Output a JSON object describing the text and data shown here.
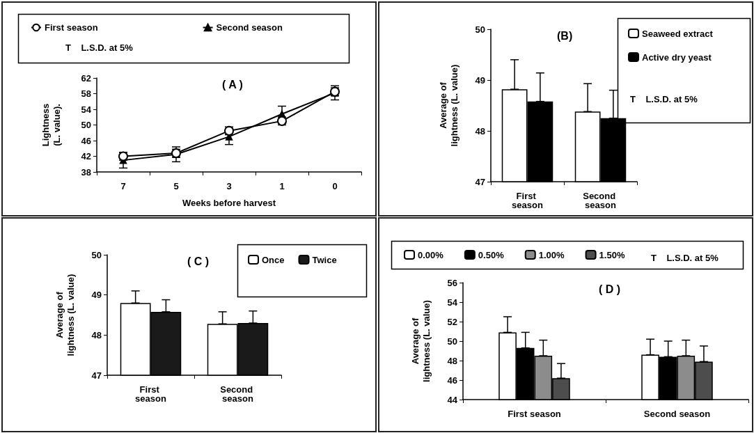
{
  "chart_data": [
    {
      "type": "line",
      "title": "( A )",
      "xlabel": "Weeks before harvest",
      "ylabel": "Lightness\n(L. value).",
      "categories": [
        "7",
        "5",
        "3",
        "1",
        "0"
      ],
      "ylim": [
        38,
        62
      ],
      "yticks": [
        38,
        42,
        46,
        50,
        54,
        58,
        62
      ],
      "legend": "top",
      "annotations": [
        "T    L.S.D. at 5%"
      ],
      "series": [
        {
          "name": "First season",
          "color": "#000000",
          "marker": "circle",
          "values": [
            42,
            42.8,
            48.5,
            51,
            58.5
          ],
          "errors": [
            1,
            1,
            1,
            1,
            1
          ]
        },
        {
          "name": "Second season",
          "color": "#000000",
          "marker": "triangle",
          "values": [
            41,
            42.5,
            47,
            52.8,
            58.2
          ],
          "errors": [
            2,
            1.9,
            2,
            2,
            1.8
          ]
        }
      ]
    },
    {
      "type": "bar",
      "title": "(B)",
      "ylabel": "Average of\nlightness (L. value)",
      "categories": [
        "First season",
        "Second season"
      ],
      "ylim": [
        47,
        50
      ],
      "yticks": [
        47,
        48,
        49,
        50
      ],
      "legend": "top right",
      "annotations": [
        "T    L.S.D. at 5%"
      ],
      "series": [
        {
          "name": "Seaweed extract",
          "color": "#ffffff",
          "values": [
            48.82,
            48.38
          ],
          "errors": [
            [
              48.82,
              49.4
            ],
            [
              48.38,
              48.93
            ]
          ]
        },
        {
          "name": "Active dry yeast",
          "color": "#000000",
          "values": [
            48.58,
            48.25
          ],
          "errors": [
            [
              48.58,
              49.14
            ],
            [
              48.25,
              48.8
            ]
          ]
        }
      ]
    },
    {
      "type": "bar",
      "title": "( C )",
      "ylabel": "Average of\nlightness (L. value)",
      "categories": [
        "First season",
        "Second season"
      ],
      "ylim": [
        47,
        50
      ],
      "yticks": [
        47,
        48,
        49,
        50
      ],
      "legend": "top right",
      "series": [
        {
          "name": "Once",
          "color": "#ffffff",
          "values": [
            48.8,
            48.28
          ],
          "errors": [
            [
              48.8,
              49.1
            ],
            [
              48.28,
              48.58
            ]
          ]
        },
        {
          "name": "Twice",
          "color": "#1a1a1a",
          "values": [
            48.58,
            48.3
          ],
          "errors": [
            [
              48.58,
              48.88
            ],
            [
              48.3,
              48.6
            ]
          ]
        }
      ]
    },
    {
      "type": "bar",
      "title": "( D )",
      "ylabel": "Average of\nlightness (L. value)",
      "categories": [
        "First season",
        "Second season"
      ],
      "ylim": [
        44,
        56
      ],
      "yticks": [
        44,
        46,
        48,
        50,
        52,
        54,
        56
      ],
      "legend": "top",
      "annotations": [
        "T    L.S.D. at 5%"
      ],
      "series": [
        {
          "name": "0.00%",
          "color": "#ffffff",
          "values": [
            50.9,
            48.6
          ],
          "errors": [
            [
              50.9,
              52.5
            ],
            [
              48.6,
              50.2
            ]
          ]
        },
        {
          "name": "0.50%",
          "color": "#000000",
          "values": [
            49.3,
            48.4
          ],
          "errors": [
            [
              49.3,
              50.9
            ],
            [
              48.4,
              50.0
            ]
          ]
        },
        {
          "name": "1.00%",
          "color": "#8c8c8c",
          "values": [
            48.5,
            48.5
          ],
          "errors": [
            [
              48.5,
              50.1
            ],
            [
              48.5,
              50.1
            ]
          ]
        },
        {
          "name": "1.50%",
          "color": "#4d4d4d",
          "values": [
            46.2,
            47.9
          ],
          "errors": [
            [
              46.2,
              47.7
            ],
            [
              47.9,
              49.5
            ]
          ]
        }
      ]
    }
  ]
}
